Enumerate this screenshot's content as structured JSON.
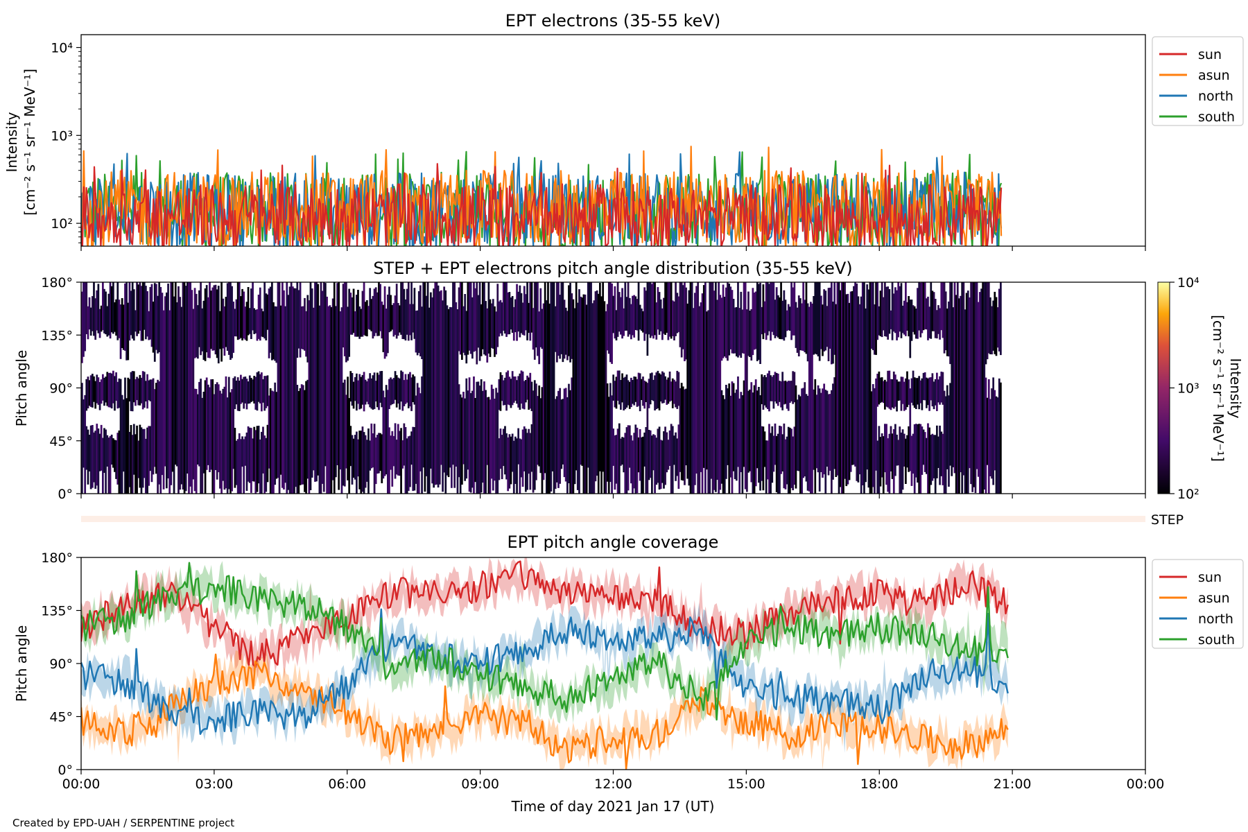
{
  "colors": {
    "sun": "#d62728",
    "asun": "#ff7f0e",
    "north": "#1f77b4",
    "south": "#2ca02c",
    "step_band": "#fdeee6"
  },
  "credit": "Created by EPD-UAH / SERPENTINE project",
  "chart_data": [
    {
      "type": "line",
      "title": "EPT electrons (35-55 keV)",
      "ylabel_line1": "Intensity",
      "ylabel_line2": "[cm⁻² s⁻¹ sr⁻¹ MeV⁻¹]",
      "yscale": "log",
      "ylim": [
        55,
        14000
      ],
      "yticks": [
        {
          "value": 100,
          "label": "10²"
        },
        {
          "value": 1000,
          "label": "10³"
        },
        {
          "value": 10000,
          "label": "10⁴"
        }
      ],
      "xlim_hours": [
        0,
        24
      ],
      "data_end_hour": 20.75,
      "legend": {
        "placement": "upper-right-outside",
        "entries": [
          "sun",
          "asun",
          "north",
          "south"
        ]
      },
      "series": [
        {
          "name": "sun",
          "typical_range": [
            55,
            280
          ],
          "peak": 480
        },
        {
          "name": "asun",
          "typical_range": [
            55,
            400
          ],
          "peak": 760
        },
        {
          "name": "north",
          "typical_range": [
            55,
            380
          ],
          "peak": 670
        },
        {
          "name": "south",
          "typical_range": [
            55,
            380
          ],
          "peak": 660
        }
      ]
    },
    {
      "type": "heatmap",
      "title": "STEP + EPT electrons pitch angle distribution (35-55 keV)",
      "ylabel": "Pitch angle",
      "ylim": [
        0,
        180
      ],
      "yticks": [
        {
          "value": 0,
          "label": "0°"
        },
        {
          "value": 45,
          "label": "45°"
        },
        {
          "value": 90,
          "label": "90°"
        },
        {
          "value": 135,
          "label": "135°"
        },
        {
          "value": 180,
          "label": "180°"
        }
      ],
      "xlim_hours": [
        0,
        24
      ],
      "data_end_hour": 20.75,
      "colorbar": {
        "label_line1": "Intensity",
        "label_line2": "[cm⁻² s⁻¹ sr⁻¹ MeV⁻¹]",
        "scale": "log",
        "range": [
          100,
          10000
        ],
        "ticks": [
          {
            "value": 100,
            "label": "10²"
          },
          {
            "value": 1000,
            "label": "10³"
          },
          {
            "value": 10000,
            "label": "10⁴"
          }
        ],
        "colormap": "inferno"
      },
      "step_label": "STEP"
    },
    {
      "type": "line",
      "title": "EPT pitch angle coverage",
      "ylabel": "Pitch angle",
      "xlabel": "Time of day 2021 Jan 17 (UT)",
      "ylim": [
        0,
        180
      ],
      "yticks": [
        {
          "value": 0,
          "label": "0°"
        },
        {
          "value": 45,
          "label": "45°"
        },
        {
          "value": 90,
          "label": "90°"
        },
        {
          "value": 135,
          "label": "135°"
        },
        {
          "value": 180,
          "label": "180°"
        }
      ],
      "xlim_hours": [
        0,
        24
      ],
      "xticks": [
        {
          "value": 0,
          "label": "00:00"
        },
        {
          "value": 3,
          "label": "03:00"
        },
        {
          "value": 6,
          "label": "06:00"
        },
        {
          "value": 9,
          "label": "09:00"
        },
        {
          "value": 12,
          "label": "12:00"
        },
        {
          "value": 15,
          "label": "15:00"
        },
        {
          "value": 18,
          "label": "18:00"
        },
        {
          "value": 21,
          "label": "21:00"
        },
        {
          "value": 24,
          "label": "00:00"
        }
      ],
      "data_end_hour": 20.9,
      "legend": {
        "placement": "upper-right-outside",
        "entries": [
          "sun",
          "asun",
          "north",
          "south"
        ]
      },
      "series": [
        {
          "name": "sun",
          "x_hours": [
            0,
            1,
            2,
            3,
            4,
            5,
            6,
            7,
            8,
            9,
            10,
            11,
            12,
            13,
            14,
            15,
            16,
            17,
            18,
            19,
            20,
            20.9
          ],
          "values": [
            120,
            140,
            150,
            120,
            95,
            110,
            125,
            150,
            150,
            155,
            165,
            150,
            150,
            140,
            120,
            115,
            135,
            145,
            150,
            140,
            160,
            140
          ]
        },
        {
          "name": "asun",
          "x_hours": [
            0,
            1,
            2,
            3,
            4,
            5,
            6,
            7,
            8,
            9,
            10,
            11,
            12,
            13,
            14,
            15,
            16,
            17,
            18,
            19,
            20,
            20.9
          ],
          "values": [
            40,
            30,
            50,
            75,
            80,
            65,
            50,
            25,
            30,
            45,
            40,
            15,
            30,
            30,
            60,
            40,
            30,
            40,
            35,
            25,
            20,
            35
          ]
        },
        {
          "name": "north",
          "x_hours": [
            0,
            1,
            2,
            3,
            4,
            5,
            6,
            7,
            8,
            9,
            10,
            11,
            12,
            13,
            14,
            15,
            16,
            17,
            18,
            19,
            20,
            20.9
          ],
          "values": [
            80,
            75,
            50,
            40,
            50,
            45,
            70,
            110,
            95,
            90,
            100,
            120,
            105,
            110,
            120,
            70,
            60,
            60,
            50,
            80,
            85,
            75
          ]
        },
        {
          "name": "south",
          "x_hours": [
            0,
            1,
            2,
            3,
            4,
            5,
            6,
            7,
            8,
            9,
            10,
            11,
            12,
            13,
            14,
            15,
            16,
            17,
            18,
            19,
            20,
            20.9
          ],
          "values": [
            120,
            130,
            150,
            155,
            145,
            140,
            120,
            85,
            95,
            80,
            70,
            60,
            75,
            90,
            60,
            110,
            120,
            115,
            120,
            115,
            100,
            105
          ]
        }
      ]
    }
  ]
}
